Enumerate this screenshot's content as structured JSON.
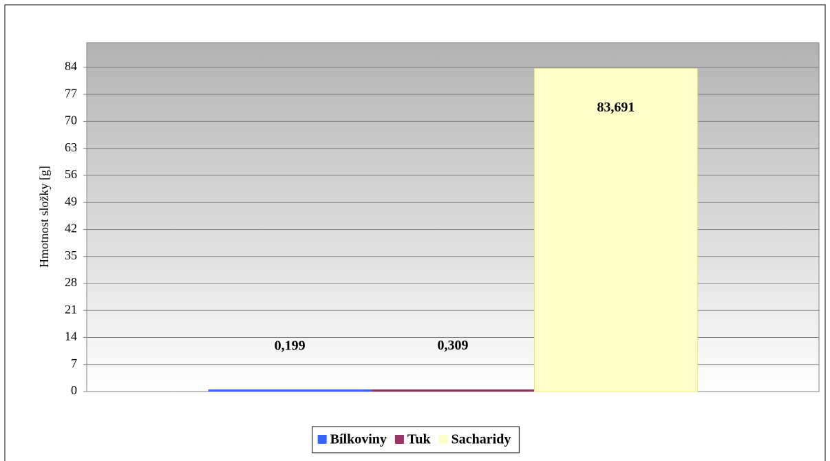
{
  "chart_data": {
    "type": "bar",
    "y_label": "Hmotnost složky [g]",
    "categories": [
      null
    ],
    "series": [
      {
        "name": "Bílkoviny",
        "color": "#3366ff",
        "values": [
          0.199
        ],
        "value_labels": [
          "0,199"
        ]
      },
      {
        "name": "Tuk",
        "color": "#993366",
        "values": [
          0.309
        ],
        "value_labels": [
          "0,309"
        ]
      },
      {
        "name": "Sacharidy",
        "color": "#ffffcc",
        "values": [
          83.691
        ],
        "value_labels": [
          "83,691"
        ]
      }
    ],
    "ylim": [
      0,
      90.4
    ],
    "yticks": [
      0,
      7,
      14,
      21,
      28,
      35,
      42,
      49,
      56,
      63,
      70,
      77,
      84
    ],
    "grid": true,
    "legend": "bottom"
  }
}
